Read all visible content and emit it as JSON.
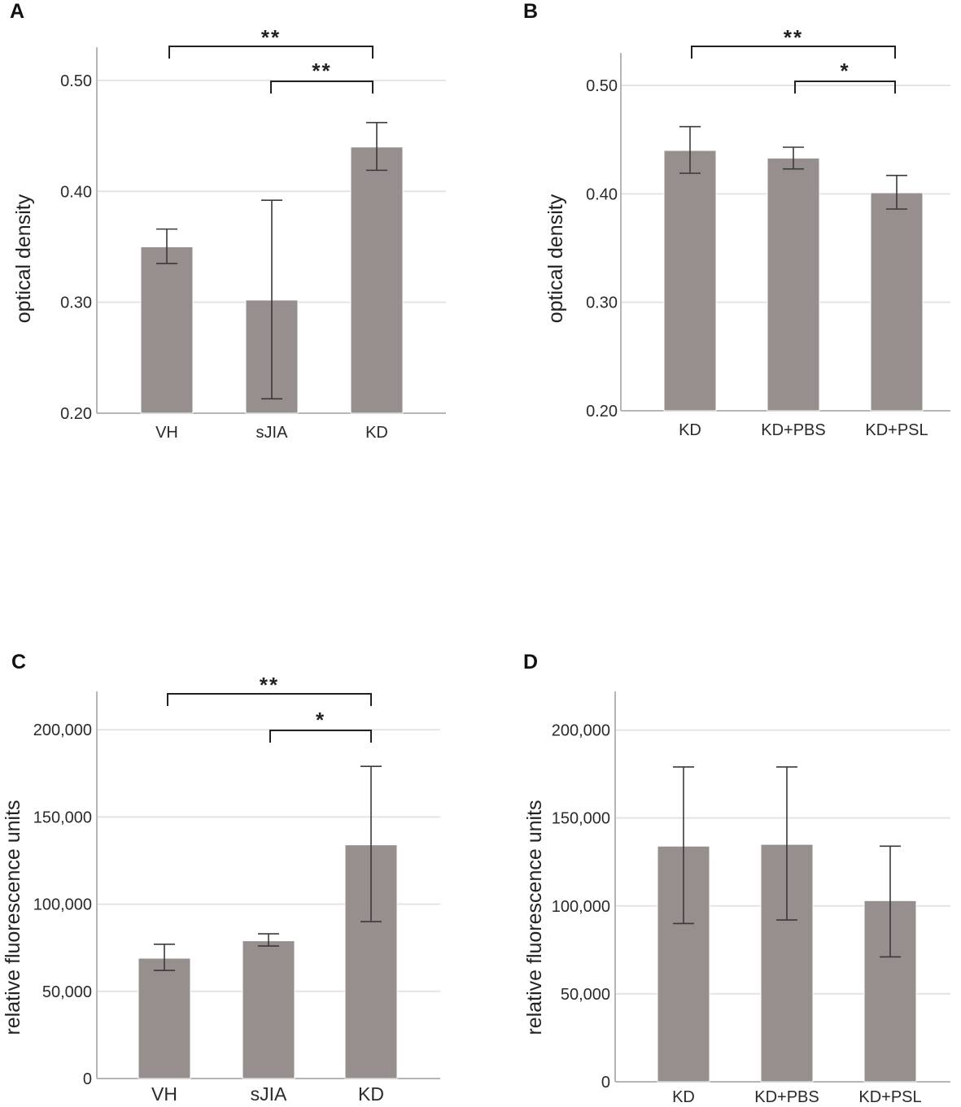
{
  "chart_data": [
    {
      "id": "A",
      "panel_label": "A",
      "type": "bar",
      "ylabel": "optical density",
      "xlabel": "",
      "categories": [
        "VH",
        "sJIA",
        "KD"
      ],
      "values": [
        0.35,
        0.302,
        0.44
      ],
      "error_low": [
        0.335,
        0.213,
        0.419
      ],
      "error_high": [
        0.366,
        0.392,
        0.462
      ],
      "ylim": [
        0.2,
        0.53
      ],
      "yticks": [
        0.2,
        0.3,
        0.4,
        0.5
      ],
      "ytick_labels": [
        "0.20",
        "0.30",
        "0.40",
        "0.50"
      ],
      "grid": true,
      "significance": [
        {
          "from": 0,
          "to": 2,
          "label": "**"
        },
        {
          "from": 1,
          "to": 2,
          "label": "**"
        }
      ]
    },
    {
      "id": "B",
      "panel_label": "B",
      "type": "bar",
      "ylabel": "optical density",
      "xlabel": "",
      "categories": [
        "KD",
        "KD+PBS",
        "KD+PSL"
      ],
      "values": [
        0.44,
        0.433,
        0.401
      ],
      "error_low": [
        0.419,
        0.423,
        0.386
      ],
      "error_high": [
        0.462,
        0.443,
        0.417
      ],
      "ylim": [
        0.2,
        0.53
      ],
      "yticks": [
        0.2,
        0.3,
        0.4,
        0.5
      ],
      "ytick_labels": [
        "0.20",
        "0.30",
        "0.40",
        "0.50"
      ],
      "grid": true,
      "significance": [
        {
          "from": 0,
          "to": 2,
          "label": "**"
        },
        {
          "from": 1,
          "to": 2,
          "label": "*"
        }
      ]
    },
    {
      "id": "C",
      "panel_label": "C",
      "type": "bar",
      "ylabel": "relative fluorescence units",
      "xlabel": "",
      "categories": [
        "VH",
        "sJIA",
        "KD"
      ],
      "values": [
        69000,
        79000,
        134000
      ],
      "error_low": [
        62000,
        76000,
        90000
      ],
      "error_high": [
        77000,
        83000,
        179000
      ],
      "ylim": [
        0,
        222000
      ],
      "yticks": [
        0,
        50000,
        100000,
        150000,
        200000
      ],
      "ytick_labels": [
        "0",
        "50,000",
        "100,000",
        "150,000",
        "200,000"
      ],
      "grid": true,
      "significance": [
        {
          "from": 0,
          "to": 2,
          "label": "**"
        },
        {
          "from": 1,
          "to": 2,
          "label": "*"
        }
      ]
    },
    {
      "id": "D",
      "panel_label": "D",
      "type": "bar",
      "ylabel": "relative fluorescence units",
      "xlabel": "",
      "categories": [
        "KD",
        "KD+PBS",
        "KD+PSL"
      ],
      "values": [
        134000,
        135000,
        103000
      ],
      "error_low": [
        90000,
        92000,
        71000
      ],
      "error_high": [
        179000,
        179000,
        134000
      ],
      "ylim": [
        0,
        222000
      ],
      "yticks": [
        0,
        50000,
        100000,
        150000,
        200000
      ],
      "ytick_labels": [
        "0",
        "50,000",
        "100,000",
        "150,000",
        "200,000"
      ],
      "grid": true,
      "significance": []
    }
  ],
  "colors": {
    "bar": "#968f8d",
    "error": "#3a3a3a",
    "grid": "#e4e4e4",
    "axis": "#b5b5b5",
    "text": "#222222"
  }
}
